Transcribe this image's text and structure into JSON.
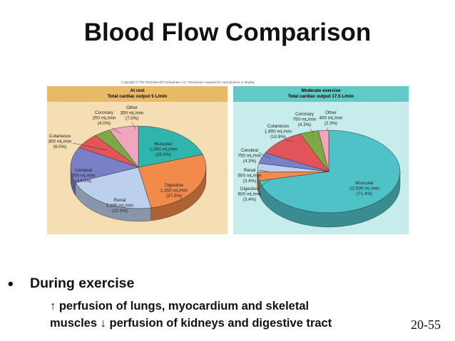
{
  "slide": {
    "title": "Blood Flow Comparison",
    "copyright": "Copyright © The McGraw-Hill Companies, Inc. Permission required for reproduction or display.",
    "bullet_main": "During exercise",
    "line1_arrow": "↑",
    "line1_text": "perfusion of lungs, myocardium and skeletal",
    "line2_text_a": "muscles",
    "line2_arrow": "↓",
    "line2_text_b": "perfusion of kidneys and digestive tract",
    "slide_number": "20-55"
  },
  "chart_data": [
    {
      "type": "pie",
      "title": "At rest",
      "subtitle": "Total cardiac output 5 L/min",
      "slices": [
        {
          "name": "Muscular",
          "flow": "1,000 mL/min",
          "pct_label": "(20.0%)",
          "value": 20.0,
          "color": "#2fb5ad"
        },
        {
          "name": "Digestive",
          "flow": "1,350 mL/min",
          "pct_label": "(27.0%)",
          "value": 27.0,
          "color": "#f18a4a"
        },
        {
          "name": "Renal",
          "flow": "1,100 mL/min",
          "pct_label": "(22.0%)",
          "value": 22.0,
          "color": "#bcd0ee"
        },
        {
          "name": "Cerebral",
          "flow": "700 mL/min",
          "pct_label": "(14.0%)",
          "value": 14.0,
          "color": "#7a80c8"
        },
        {
          "name": "Cutaneous",
          "flow": "300 mL/min",
          "pct_label": "(6.0%)",
          "value": 6.0,
          "color": "#e0545a"
        },
        {
          "name": "Coronary",
          "flow": "200 mL/min",
          "pct_label": "(4.0%)",
          "value": 4.0,
          "color": "#7ea842"
        },
        {
          "name": "Other",
          "flow": "350 mL/min",
          "pct_label": "(7.0%)",
          "value": 7.0,
          "color": "#f1a6c0"
        }
      ]
    },
    {
      "type": "pie",
      "title": "Moderate exercise",
      "subtitle": "Total cardiac output 17.5 L/min",
      "slices": [
        {
          "name": "Muscular",
          "flow": "12,500 mL/min",
          "pct_label": "(71.4%)",
          "value": 71.4,
          "color": "#4fc2c8"
        },
        {
          "name": "Digestive",
          "flow": "600 mL/min",
          "pct_label": "(3.4%)",
          "value": 3.4,
          "color": "#f18a4a"
        },
        {
          "name": "Renal",
          "flow": "600 mL/min",
          "pct_label": "(3.4%)",
          "value": 3.4,
          "color": "#bcd0ee"
        },
        {
          "name": "Cerebral",
          "flow": "750 mL/min",
          "pct_label": "(4.3%)",
          "value": 4.3,
          "color": "#7a80c8"
        },
        {
          "name": "Cutaneous",
          "flow": "1,900 mL/min",
          "pct_label": "(10.9%)",
          "value": 10.9,
          "color": "#e0545a"
        },
        {
          "name": "Coronary",
          "flow": "750 mL/min",
          "pct_label": "(4.3%)",
          "value": 4.3,
          "color": "#7ea842"
        },
        {
          "name": "Other",
          "flow": "400 mL/min",
          "pct_label": "(2.3%)",
          "value": 2.3,
          "color": "#f1a6c0"
        }
      ]
    }
  ]
}
